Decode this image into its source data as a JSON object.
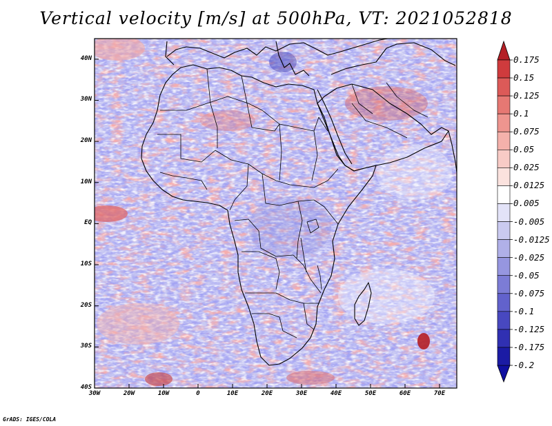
{
  "title": "Vertical velocity [m/s] at 500hPa, VT: 2021052818",
  "credit": "GrADS: IGES/COLA",
  "map": {
    "region": "Africa",
    "variable": "Vertical velocity",
    "units": "m/s",
    "level": "500hPa",
    "valid_time": "2021052818",
    "lat_range": [
      -40,
      45
    ],
    "lon_range": [
      -30,
      75
    ],
    "lat_ticks": [
      {
        "label": "40N",
        "lat": 40
      },
      {
        "label": "30N",
        "lat": 30
      },
      {
        "label": "20N",
        "lat": 20
      },
      {
        "label": "10N",
        "lat": 10
      },
      {
        "label": "EQ",
        "lat": 0
      },
      {
        "label": "10S",
        "lat": -10
      },
      {
        "label": "20S",
        "lat": -20
      },
      {
        "label": "30S",
        "lat": -30
      },
      {
        "label": "40S",
        "lat": -40
      }
    ],
    "lon_ticks": [
      {
        "label": "30W",
        "lon": -30
      },
      {
        "label": "20W",
        "lon": -20
      },
      {
        "label": "10W",
        "lon": -10
      },
      {
        "label": "0",
        "lon": 0
      },
      {
        "label": "10E",
        "lon": 10
      },
      {
        "label": "20E",
        "lon": 20
      },
      {
        "label": "30E",
        "lon": 30
      },
      {
        "label": "40E",
        "lon": 40
      },
      {
        "label": "50E",
        "lon": 50
      },
      {
        "label": "60E",
        "lon": 60
      },
      {
        "label": "70E",
        "lon": 70
      }
    ]
  },
  "colorbar": {
    "labels": [
      "0.175",
      "0.15",
      "0.125",
      "0.1",
      "0.075",
      "0.05",
      "0.025",
      "0.0125",
      "0.005",
      "-0.005",
      "-0.0125",
      "-0.025",
      "-0.05",
      "-0.075",
      "-0.1",
      "-0.125",
      "-0.175",
      "-0.2"
    ],
    "colors": [
      "#b41f25",
      "#cf3b3d",
      "#dc5a58",
      "#e67873",
      "#ee958f",
      "#f4b1ab",
      "#f8cbc6",
      "#fbe2de",
      "#ffffff",
      "#e3e3f8",
      "#cacaf0",
      "#b0b0e8",
      "#9696e0",
      "#7c7cd6",
      "#6262cc",
      "#4848c0",
      "#3030b2",
      "#1b1ba4",
      "#1010a0"
    ]
  }
}
